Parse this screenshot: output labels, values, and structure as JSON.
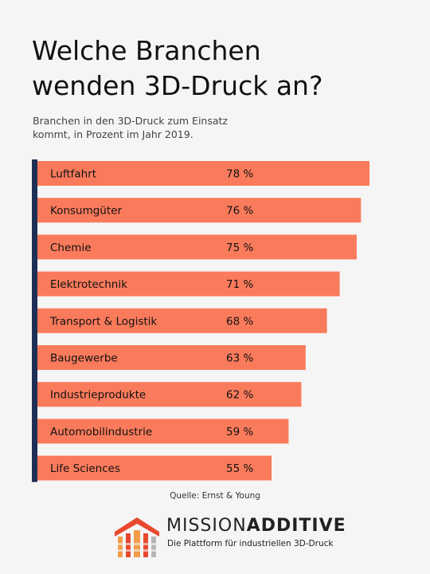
{
  "heading": {
    "line1": "Welche Branchen",
    "line2": "wenden 3D-Druck an?"
  },
  "sub": {
    "line1": "Branchen in den 3D-Druck zum Einsatz",
    "line2": "kommt, in Prozent im Jahr 2019."
  },
  "source": "Quelle: Ernst & Young",
  "brand": {
    "name_light": "MISSION",
    "name_bold": "ADDITIVE",
    "tagline": "Die Plattform für industriellen 3D-Druck"
  },
  "colors": {
    "bar": "#fa7b5c",
    "axis": "#1e2f55",
    "logo_red": "#e8492e",
    "logo_orange": "#f39c4a",
    "logo_gray": "#b5b5b5"
  },
  "chart_data": {
    "type": "bar",
    "orientation": "horizontal",
    "unit": "%",
    "categories": [
      "Luftfahrt",
      "Konsumgüter",
      "Chemie",
      "Elektrotechnik",
      "Transport & Logistik",
      "Baugewerbe",
      "Industrieprodukte",
      "Automobilindustrie",
      "Life Sciences"
    ],
    "values": [
      78,
      76,
      75,
      71,
      68,
      63,
      62,
      59,
      55
    ],
    "labels": [
      "78 %",
      "76 %",
      "75 %",
      "71 %",
      "68 %",
      "63 %",
      "62 %",
      "59 %",
      "55 %"
    ],
    "xlim": [
      0,
      78
    ]
  }
}
